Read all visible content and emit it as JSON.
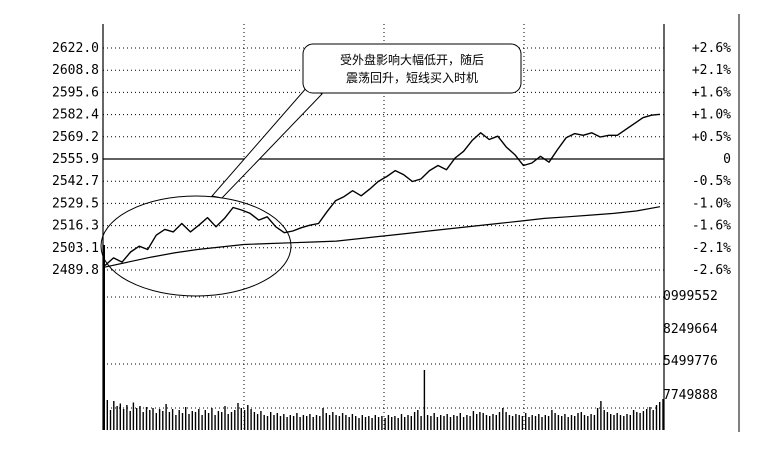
{
  "chart_data": {
    "type": "line",
    "title": "",
    "xlabel": "",
    "ylabel": "",
    "ylim": [
      2489.8,
      2622.0
    ],
    "grid": true,
    "y_ticks_left": [
      "2622.0",
      "2608.8",
      "2595.6",
      "2582.4",
      "2569.2",
      "2555.9",
      "2542.7",
      "2529.5",
      "2516.3",
      "2503.1",
      "2489.8"
    ],
    "y_ticks_right": [
      "+2.6%",
      "+2.1%",
      "+1.6%",
      "+1.0%",
      "+0.5%",
      "0",
      "-0.5%",
      "-1.0%",
      "-1.6%",
      "-2.1%",
      "-2.6%"
    ],
    "reference_value": 2555.9,
    "volume_ticks": [
      "0999552",
      "8249664",
      "5499776",
      "7749888"
    ],
    "annotation": {
      "line1": "受外盘影响大幅低开，随后",
      "line2": "震荡回升，短线买入时机"
    },
    "series": [
      {
        "values": [
          2492.5,
          2497.0,
          2494.5,
          2500.5,
          2504.0,
          2502.0,
          2510.5,
          2514.0,
          2512.5,
          2517.5,
          2512.5,
          2516.5,
          2521.0,
          2515.5,
          2520.5,
          2527.0,
          2525.5,
          2523.5,
          2519.5,
          2521.5,
          2515.5,
          2512.0,
          2513.0,
          2515.0,
          2516.5,
          2517.5,
          2524.5,
          2531.0,
          2533.5,
          2537.0,
          2534.0,
          2538.0,
          2542.5,
          2545.5,
          2549.0,
          2546.5,
          2542.5,
          2544.0,
          2549.0,
          2552.0,
          2549.5,
          2556.5,
          2560.5,
          2567.0,
          2571.5,
          2567.5,
          2569.5,
          2563.0,
          2558.5,
          2552.0,
          2553.5,
          2557.5,
          2554.0,
          2561.5,
          2568.5,
          2571.0,
          2570.0,
          2571.5,
          2569.0,
          2570.0,
          2570.0,
          2573.5,
          2577.0,
          2580.5,
          2582.0,
          2582.5
        ]
      },
      {
        "values": [
          2491.5,
          2494.5,
          2497.5,
          2500.0,
          2502.0,
          2503.5,
          2505.0,
          2505.5,
          2506.0,
          2506.5,
          2507.0,
          2508.5,
          2510.0,
          2511.5,
          2513.0,
          2514.5,
          2516.0,
          2517.5,
          2519.0,
          2520.5,
          2521.5,
          2522.5,
          2523.5,
          2525.0,
          2527.5
        ]
      }
    ],
    "volume": [
      120,
      60,
      40,
      58,
      48,
      53,
      42,
      50,
      38,
      55,
      44,
      48,
      36,
      46,
      40,
      44,
      34,
      42,
      38,
      52,
      36,
      42,
      30,
      40,
      34,
      46,
      32,
      38,
      36,
      42,
      30,
      40,
      34,
      44,
      30,
      38,
      36,
      48,
      32,
      36,
      40,
      54,
      44,
      40,
      50,
      42,
      36,
      32,
      38,
      30,
      28,
      36,
      30,
      34,
      28,
      32,
      26,
      30,
      28,
      34,
      26,
      30,
      28,
      32,
      26,
      30,
      28,
      44,
      34,
      30,
      36,
      30,
      28,
      34,
      30,
      26,
      32,
      28,
      24,
      30,
      26,
      28,
      24,
      30,
      26,
      28,
      24,
      30,
      26,
      28,
      24,
      32,
      26,
      30,
      28,
      36,
      40,
      28,
      120,
      30,
      28,
      34,
      26,
      30,
      28,
      32,
      26,
      30,
      28,
      34,
      26,
      30,
      28,
      38,
      32,
      36,
      34,
      30,
      28,
      32,
      30,
      36,
      44,
      36,
      30,
      28,
      32,
      30,
      28,
      34,
      26,
      30,
      28,
      32,
      26,
      30,
      28,
      40,
      34,
      30,
      28,
      32,
      26,
      30,
      28,
      34,
      36,
      30,
      28,
      32,
      30,
      44,
      58,
      40,
      36,
      32,
      30,
      34,
      30,
      28,
      32,
      30,
      40,
      36,
      34,
      38,
      42,
      46,
      40,
      50,
      56,
      62
    ]
  }
}
